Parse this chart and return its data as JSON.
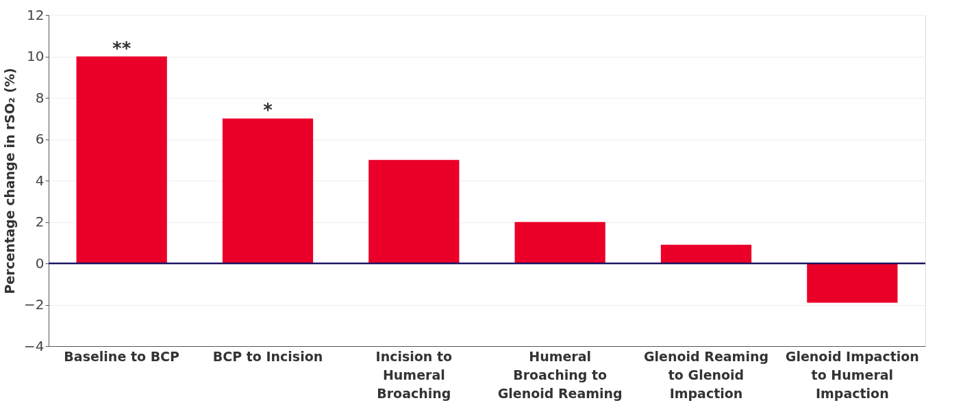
{
  "chart_data": {
    "type": "bar",
    "ylabel": "Percentage change in rSO₂ (%)",
    "categories": [
      "Baseline to BCP",
      "BCP to Incision",
      "Incision to\nHumeral\nBroaching",
      "Humeral\nBroaching to\nGlenoid Reaming",
      "Glenoid Reaming\nto Glenoid\nImpaction",
      "Glenoid Impaction\nto Humeral\nImpaction"
    ],
    "values": [
      10,
      7,
      5,
      2,
      0.9,
      -1.9
    ],
    "color": "#eb0029",
    "ylim": [
      -4,
      12
    ],
    "yticks": [
      -4,
      -2,
      0,
      2,
      4,
      6,
      8,
      10,
      12
    ],
    "grid": "y",
    "ref_lines": [
      {
        "axis": "y",
        "value": 0,
        "color": "#1b1464"
      }
    ],
    "annotations": [
      {
        "text": "**",
        "x": "Baseline to BCP",
        "y": 10
      },
      {
        "text": "*",
        "x": "BCP to Incision",
        "y": 7
      }
    ]
  }
}
